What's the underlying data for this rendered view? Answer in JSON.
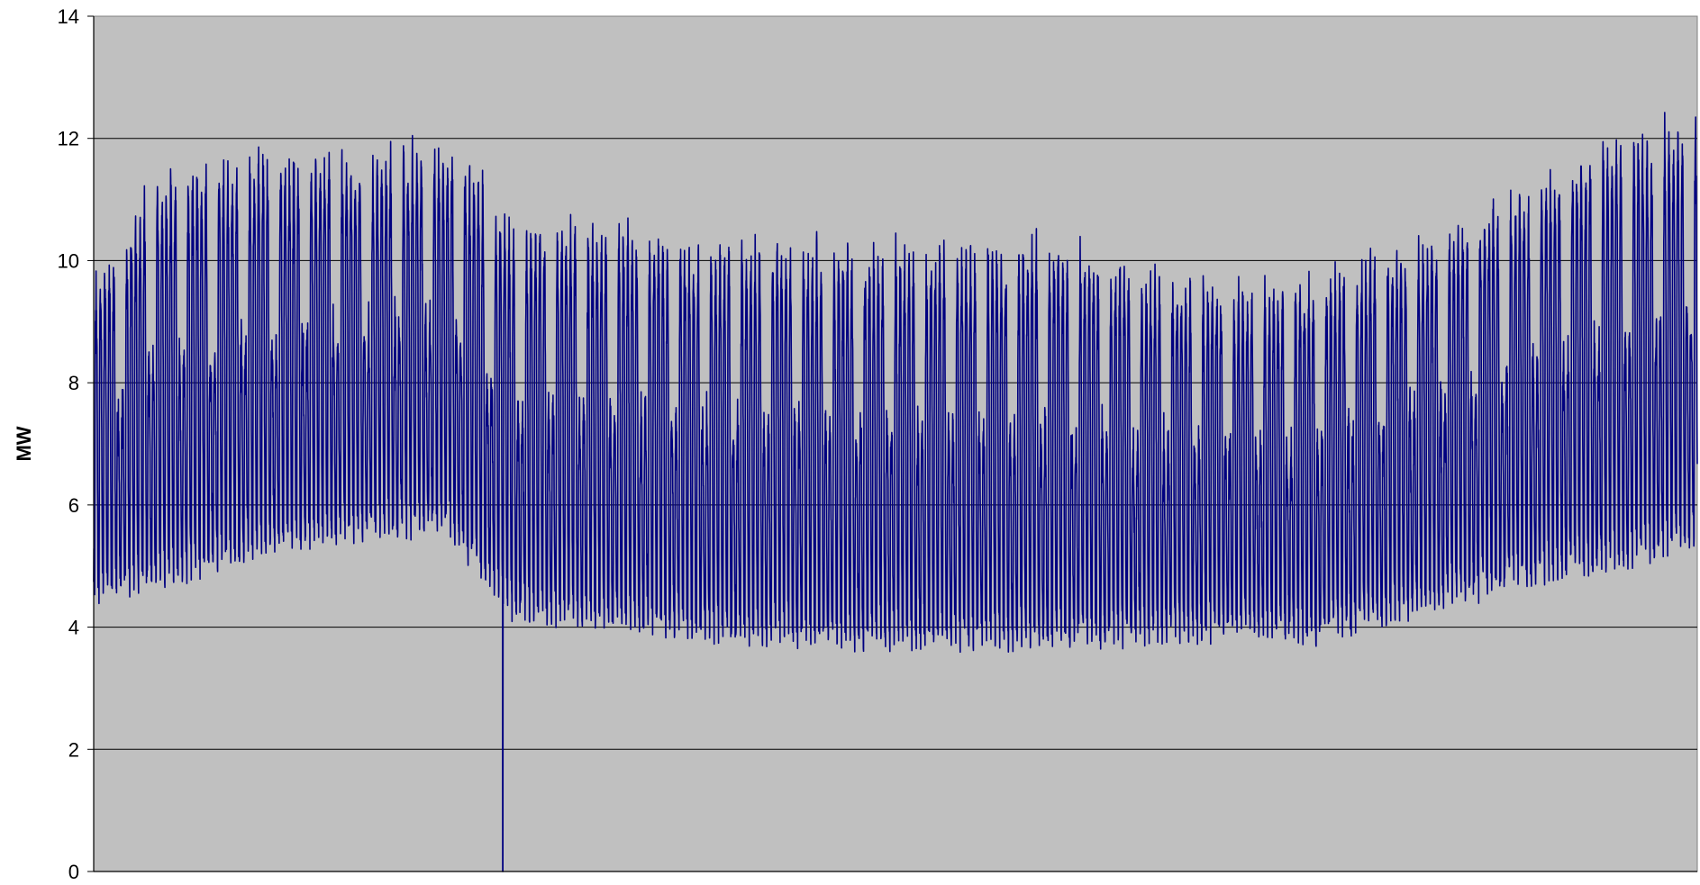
{
  "chart_data": {
    "type": "line",
    "title": "",
    "xlabel": "",
    "ylabel": "MW",
    "ylim": [
      0,
      14
    ],
    "y_ticks": [
      "0",
      "2",
      "4",
      "6",
      "8",
      "10",
      "12",
      "14"
    ],
    "grid": true,
    "legend": "none",
    "plot_background": "#c0c0c0",
    "gridline_color": "#000000",
    "series": [
      {
        "color": "#000080",
        "point_count": 8760,
        "daily_min_trend_x": [
          0,
          0.04,
          0.1,
          0.16,
          0.22,
          0.24,
          0.26,
          0.3,
          0.4,
          0.5,
          0.6,
          0.66,
          0.72,
          0.76,
          0.82,
          0.86,
          0.9,
          0.95,
          1.0
        ],
        "daily_min_trend_y": [
          4.6,
          4.8,
          5.3,
          5.6,
          5.7,
          5.0,
          4.3,
          4.2,
          3.9,
          3.8,
          3.8,
          3.9,
          4.0,
          3.9,
          4.3,
          4.6,
          4.9,
          5.1,
          5.5
        ],
        "daily_max_trend_x": [
          0,
          0.04,
          0.1,
          0.16,
          0.22,
          0.24,
          0.26,
          0.3,
          0.4,
          0.5,
          0.6,
          0.66,
          0.72,
          0.76,
          0.82,
          0.86,
          0.9,
          0.95,
          1.0
        ],
        "daily_max_trend_y": [
          9.2,
          11.0,
          11.3,
          11.3,
          11.6,
          11.0,
          10.2,
          10.2,
          9.9,
          9.8,
          9.9,
          9.4,
          9.2,
          9.3,
          9.9,
          10.3,
          10.9,
          11.6,
          11.9
        ],
        "outlier": {
          "x_fraction": 0.255,
          "value": 0
        }
      }
    ]
  }
}
